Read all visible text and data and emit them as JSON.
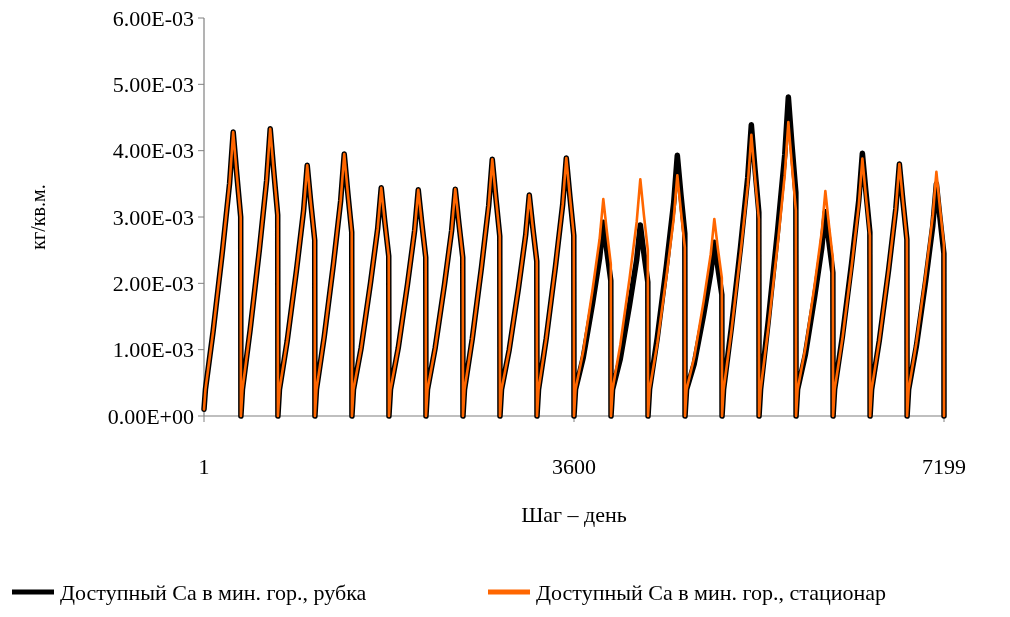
{
  "chart_data": {
    "type": "line",
    "xlabel": "Шаг – день",
    "ylabel": "кг/кв.м.",
    "x": [
      1,
      15,
      90,
      180,
      250,
      285,
      320,
      358,
      360,
      375,
      450,
      540,
      610,
      645,
      680,
      718,
      720,
      735,
      810,
      900,
      970,
      1005,
      1040,
      1078,
      1080,
      1095,
      1170,
      1260,
      1330,
      1365,
      1400,
      1438,
      1440,
      1455,
      1530,
      1620,
      1690,
      1725,
      1760,
      1798,
      1800,
      1815,
      1890,
      1980,
      2050,
      2085,
      2120,
      2158,
      2160,
      2175,
      2250,
      2340,
      2410,
      2445,
      2480,
      2518,
      2520,
      2535,
      2610,
      2700,
      2770,
      2805,
      2840,
      2878,
      2880,
      2895,
      2970,
      3060,
      3130,
      3165,
      3200,
      3238,
      3240,
      3255,
      3330,
      3420,
      3490,
      3525,
      3560,
      3598,
      3600,
      3615,
      3690,
      3780,
      3850,
      3885,
      3920,
      3958,
      3960,
      3975,
      4050,
      4140,
      4210,
      4245,
      4280,
      4318,
      4320,
      4335,
      4410,
      4500,
      4570,
      4605,
      4640,
      4678,
      4680,
      4695,
      4770,
      4860,
      4930,
      4965,
      5000,
      5038,
      5040,
      5055,
      5130,
      5220,
      5290,
      5325,
      5360,
      5398,
      5400,
      5415,
      5490,
      5580,
      5650,
      5685,
      5720,
      5758,
      5760,
      5775,
      5850,
      5940,
      6010,
      6045,
      6080,
      6118,
      6120,
      6135,
      6210,
      6300,
      6370,
      6405,
      6440,
      6478,
      6480,
      6495,
      6570,
      6660,
      6730,
      6765,
      6800,
      6838,
      6840,
      6855,
      6930,
      7020,
      7090,
      7125,
      7160,
      7198,
      7199
    ],
    "series": [
      {
        "name": "Доступный Ca в мин. гор., рубка",
        "color": "#000000",
        "values": [
          0.0001,
          0.0004,
          0.00128,
          0.00248,
          0.00351,
          0.00428,
          0.00364,
          0.003,
          0,
          0.0004,
          0.0013,
          0.00251,
          0.00355,
          0.00433,
          0.00368,
          0.00303,
          0,
          0.0004,
          0.00113,
          0.00219,
          0.0031,
          0.00378,
          0.00321,
          0.00265,
          0,
          0.0004,
          0.00119,
          0.00229,
          0.00324,
          0.00395,
          0.00336,
          0.00277,
          0,
          0.0004,
          0.00103,
          0.002,
          0.00282,
          0.00344,
          0.00292,
          0.00241,
          0,
          0.0004,
          0.00102,
          0.00198,
          0.0028,
          0.00341,
          0.0029,
          0.00239,
          0,
          0.0004,
          0.00103,
          0.00198,
          0.0028,
          0.00342,
          0.00291,
          0.00239,
          0,
          0.0004,
          0.00116,
          0.00224,
          0.00317,
          0.00387,
          0.00329,
          0.00271,
          0,
          0.0004,
          0.001,
          0.00193,
          0.00273,
          0.00333,
          0.00283,
          0.00233,
          0,
          0.0004,
          0.00117,
          0.00226,
          0.00319,
          0.00389,
          0.00331,
          0.00272,
          0,
          0.0004,
          0.00088,
          0.00169,
          0.00239,
          0.00292,
          0.00248,
          0.00204,
          0,
          0.0004,
          0.00086,
          0.00167,
          0.00236,
          0.00288,
          0.00245,
          0.00202,
          0,
          0.0004,
          0.00118,
          0.00228,
          0.00322,
          0.00393,
          0.00334,
          0.00275,
          0,
          0.0004,
          0.00079,
          0.00152,
          0.00215,
          0.00262,
          0.00223,
          0.00183,
          0,
          0.0004,
          0.00132,
          0.00255,
          0.0036,
          0.00439,
          0.00373,
          0.00307,
          0,
          0.0004,
          0.00144,
          0.00279,
          0.00394,
          0.00481,
          0.00409,
          0.00337,
          0,
          0.0004,
          0.00092,
          0.00179,
          0.00253,
          0.00308,
          0.00262,
          0.00216,
          0,
          0.0004,
          0.00119,
          0.0023,
          0.00325,
          0.00396,
          0.00337,
          0.00277,
          0,
          0.0004,
          0.00114,
          0.0022,
          0.00312,
          0.0038,
          0.00323,
          0.00266,
          0,
          0.0004,
          0.00105,
          0.00203,
          0.00287,
          0.0035,
          0.00298,
          0.00245,
          0
        ]
      },
      {
        "name": "Доступный Ca в мин. гор., стационар",
        "color": "#ff6600",
        "values": [
          0.0001,
          0.0004,
          0.00128,
          0.00248,
          0.00351,
          0.00428,
          0.00364,
          0.003,
          0,
          0.0004,
          0.0013,
          0.00251,
          0.00355,
          0.00433,
          0.00368,
          0.00303,
          0,
          0.0004,
          0.00113,
          0.00219,
          0.0031,
          0.00378,
          0.00321,
          0.00265,
          0,
          0.0004,
          0.00119,
          0.00229,
          0.00324,
          0.00395,
          0.00336,
          0.00277,
          0,
          0.0004,
          0.00103,
          0.002,
          0.00282,
          0.00344,
          0.00292,
          0.00241,
          0,
          0.0004,
          0.00102,
          0.00198,
          0.0028,
          0.00341,
          0.0029,
          0.00239,
          0,
          0.0004,
          0.00103,
          0.00198,
          0.0028,
          0.00342,
          0.00291,
          0.00239,
          0,
          0.0004,
          0.00116,
          0.00224,
          0.00317,
          0.00387,
          0.00329,
          0.00271,
          0,
          0.0004,
          0.001,
          0.00193,
          0.00273,
          0.00333,
          0.00283,
          0.00233,
          0,
          0.0004,
          0.00117,
          0.00226,
          0.00319,
          0.00389,
          0.00331,
          0.00272,
          0,
          0.0004,
          0.00098,
          0.0019,
          0.00268,
          0.00327,
          0.00278,
          0.00229,
          0,
          0.0004,
          0.00107,
          0.00207,
          0.00293,
          0.00357,
          0.00303,
          0.0025,
          0,
          0.0004,
          0.00109,
          0.00211,
          0.00298,
          0.00363,
          0.00309,
          0.00254,
          0,
          0.0004,
          0.00089,
          0.00172,
          0.00244,
          0.00297,
          0.00252,
          0.00208,
          0,
          0.0004,
          0.00127,
          0.00246,
          0.00348,
          0.00424,
          0.0036,
          0.00297,
          0,
          0.0004,
          0.00133,
          0.00257,
          0.00363,
          0.00443,
          0.00377,
          0.0031,
          0,
          0.0004,
          0.00102,
          0.00197,
          0.00278,
          0.00339,
          0.00288,
          0.00237,
          0,
          0.0004,
          0.00116,
          0.00225,
          0.00318,
          0.00388,
          0.0033,
          0.00272,
          0,
          0.0004,
          0.00114,
          0.0022,
          0.00312,
          0.0038,
          0.00323,
          0.00266,
          0,
          0.0004,
          0.0011,
          0.00213,
          0.00302,
          0.00368,
          0.00313,
          0.00258,
          0
        ]
      }
    ],
    "xlim": [
      1,
      7199
    ],
    "xticks": [
      1,
      3600,
      7199
    ],
    "ylim": [
      0,
      0.006
    ],
    "yticks": [
      {
        "value": 0,
        "label": "0.00E+00"
      },
      {
        "value": 0.001,
        "label": "1.00E-03"
      },
      {
        "value": 0.002,
        "label": "2.00E-03"
      },
      {
        "value": 0.003,
        "label": "3.00E-03"
      },
      {
        "value": 0.004,
        "label": "4.00E-03"
      },
      {
        "value": 0.005,
        "label": "5.00E-03"
      },
      {
        "value": 0.006,
        "label": "6.00E-03"
      }
    ],
    "grid": false,
    "legend": "bottom",
    "marker": "none",
    "line_style": "solid"
  }
}
